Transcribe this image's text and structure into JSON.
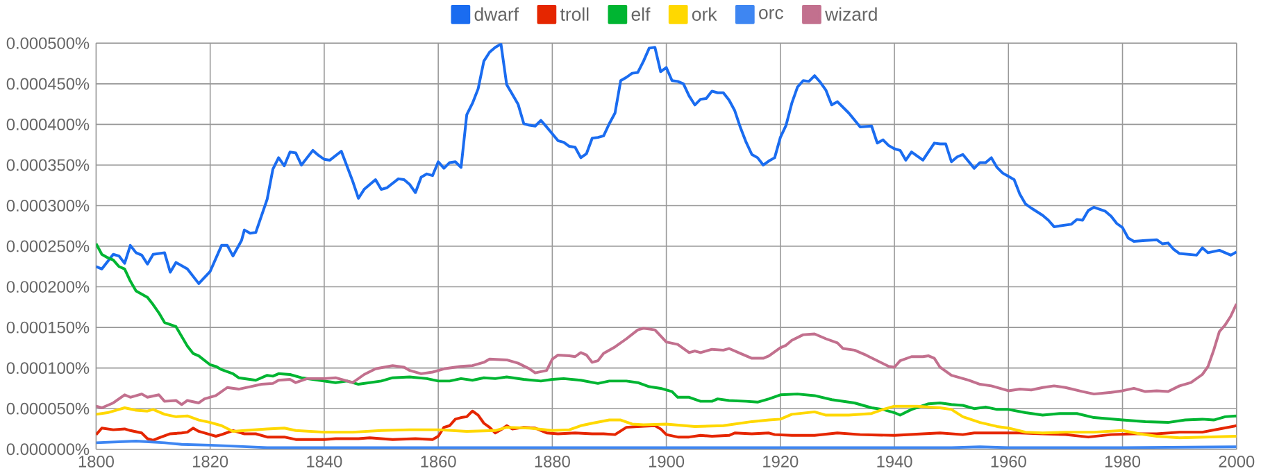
{
  "chart_data": {
    "type": "line",
    "xlim": [
      1800,
      2000
    ],
    "ylim": [
      0,
      0.0005
    ],
    "xticks": [
      1800,
      1820,
      1840,
      1860,
      1880,
      1900,
      1920,
      1940,
      1960,
      1980,
      2000
    ],
    "yticks": [
      {
        "value": 0,
        "label": "0.000000%"
      },
      {
        "value": 5e-05,
        "label": "0.000050%"
      },
      {
        "value": 0.0001,
        "label": "0.000100%"
      },
      {
        "value": 0.00015,
        "label": "0.000150%"
      },
      {
        "value": 0.0002,
        "label": "0.000200%"
      },
      {
        "value": 0.00025,
        "label": "0.000250%"
      },
      {
        "value": 0.0003,
        "label": "0.000300%"
      },
      {
        "value": 0.00035,
        "label": "0.000350%"
      },
      {
        "value": 0.0004,
        "label": "0.000400%"
      },
      {
        "value": 0.00045,
        "label": "0.000450%"
      },
      {
        "value": 0.0005,
        "label": "0.000500%"
      }
    ],
    "grid": true,
    "legend": "top",
    "marker": "none",
    "line_style": "solid",
    "series": [
      {
        "name": "dwarf",
        "color": "#1a6cf0",
        "x": [
          1800,
          1801,
          1803,
          1804,
          1805,
          1806,
          1807,
          1808,
          1809,
          1810,
          1812,
          1813,
          1814,
          1816,
          1818,
          1820,
          1822,
          1823,
          1824,
          1825.5,
          1826,
          1827,
          1828,
          1830,
          1831,
          1832,
          1833,
          1834,
          1835,
          1836,
          1838,
          1839,
          1840,
          1841,
          1843,
          1845,
          1846,
          1847,
          1849,
          1850,
          1851,
          1853,
          1854,
          1855,
          1856,
          1857,
          1858,
          1859,
          1860,
          1861,
          1862,
          1863,
          1864,
          1865,
          1866,
          1867,
          1868,
          1869,
          1870,
          1871,
          1872,
          1873,
          1874,
          1875,
          1876,
          1877,
          1878,
          1879,
          1881,
          1882,
          1883,
          1884,
          1885,
          1886,
          1887,
          1888,
          1889,
          1890,
          1891,
          1892,
          1893,
          1894,
          1895,
          1896,
          1897,
          1898,
          1899,
          1900,
          1901,
          1902,
          1903,
          1904,
          1905,
          1906,
          1907,
          1908,
          1909,
          1910,
          1911,
          1912,
          1913,
          1914,
          1915,
          1916,
          1917,
          1918,
          1919,
          1920,
          1921,
          1922,
          1923,
          1924,
          1925,
          1926,
          1927,
          1928,
          1929,
          1930,
          1932,
          1934,
          1936,
          1937,
          1938,
          1939,
          1940,
          1941,
          1942,
          1943,
          1945,
          1947,
          1948,
          1949,
          1950,
          1951,
          1952,
          1954,
          1955,
          1956,
          1957,
          1958,
          1959,
          1960,
          1961,
          1962,
          1963,
          1964,
          1966,
          1967,
          1968,
          1970,
          1971,
          1972,
          1973,
          1974,
          1975,
          1977,
          1978,
          1979,
          1980,
          1981,
          1982,
          1984,
          1986,
          1987,
          1988,
          1989,
          1990,
          1993,
          1994,
          1995,
          1997,
          1998,
          1999,
          2000
        ],
        "values": [
          0.000225,
          0.000222,
          0.00024,
          0.000238,
          0.000229,
          0.000251,
          0.000242,
          0.000239,
          0.000228,
          0.00024,
          0.000242,
          0.000218,
          0.00023,
          0.000222,
          0.000204,
          0.000219,
          0.000251,
          0.000251,
          0.000238,
          0.000257,
          0.00027,
          0.000266,
          0.000267,
          0.000308,
          0.000345,
          0.000359,
          0.000349,
          0.000366,
          0.000365,
          0.00035,
          0.000368,
          0.000362,
          0.000357,
          0.000356,
          0.000367,
          0.00033,
          0.000309,
          0.00032,
          0.000332,
          0.00032,
          0.000322,
          0.000333,
          0.000332,
          0.000326,
          0.000316,
          0.000335,
          0.000339,
          0.000337,
          0.000354,
          0.000346,
          0.000353,
          0.000354,
          0.000347,
          0.000412,
          0.000426,
          0.000444,
          0.000478,
          0.000489,
          0.000495,
          0.000499,
          0.000449,
          0.000437,
          0.000425,
          0.000401,
          0.000399,
          0.000398,
          0.000405,
          0.000397,
          0.00038,
          0.000378,
          0.000373,
          0.000372,
          0.000359,
          0.000364,
          0.000383,
          0.000384,
          0.000386,
          0.000401,
          0.000414,
          0.000454,
          0.000458,
          0.000463,
          0.000464,
          0.000478,
          0.000494,
          0.000495,
          0.000465,
          0.00047,
          0.000454,
          0.000453,
          0.00045,
          0.000435,
          0.000424,
          0.000431,
          0.000432,
          0.000441,
          0.000439,
          0.000439,
          0.00043,
          0.000417,
          0.000396,
          0.000378,
          0.000363,
          0.000359,
          0.00035,
          0.000355,
          0.000359,
          0.000384,
          0.000399,
          0.000426,
          0.000446,
          0.000454,
          0.000453,
          0.00046,
          0.000452,
          0.000442,
          0.000424,
          0.000428,
          0.000414,
          0.000397,
          0.000398,
          0.000377,
          0.000381,
          0.000374,
          0.00037,
          0.000368,
          0.000356,
          0.000366,
          0.000356,
          0.000377,
          0.000376,
          0.000376,
          0.000354,
          0.00036,
          0.000363,
          0.000346,
          0.000353,
          0.000353,
          0.000359,
          0.000347,
          0.00034,
          0.000336,
          0.000332,
          0.000314,
          0.000302,
          0.000297,
          0.000288,
          0.000282,
          0.000274,
          0.000276,
          0.000277,
          0.000283,
          0.000282,
          0.000294,
          0.000298,
          0.000293,
          0.000287,
          0.000278,
          0.000273,
          0.00026,
          0.000256,
          0.000257,
          0.000258,
          0.000253,
          0.000254,
          0.000246,
          0.000241,
          0.000239,
          0.000248,
          0.000242,
          0.000245,
          0.000242,
          0.000239,
          0.000243
        ]
      },
      {
        "name": "troll",
        "color": "#e52600",
        "x": [
          1800,
          1801,
          1803,
          1805,
          1806,
          1808,
          1809,
          1810,
          1811,
          1813,
          1815,
          1816,
          1817,
          1818,
          1820,
          1821,
          1822,
          1824,
          1826,
          1828,
          1830,
          1833,
          1835,
          1840,
          1842,
          1846,
          1848,
          1852,
          1856,
          1859,
          1860,
          1861,
          1862,
          1863,
          1864,
          1865,
          1866,
          1867,
          1868,
          1869,
          1870,
          1871,
          1872,
          1873,
          1875,
          1877,
          1879,
          1881,
          1884,
          1887,
          1889,
          1891,
          1893,
          1895,
          1898,
          1899,
          1900,
          1902,
          1904,
          1906,
          1908,
          1911,
          1912,
          1915,
          1918,
          1919,
          1922,
          1926,
          1930,
          1934,
          1940,
          1945,
          1948,
          1952,
          1954,
          1958,
          1962,
          1966,
          1970,
          1974,
          1978,
          1982,
          1986,
          1990,
          1994,
          1997,
          2000
        ],
        "values": [
          1.8e-05,
          2.6e-05,
          2.4e-05,
          2.5e-05,
          2.3e-05,
          2e-05,
          1.3e-05,
          1.1e-05,
          1.4e-05,
          1.9e-05,
          2e-05,
          2.1e-05,
          2.6e-05,
          2.2e-05,
          1.8e-05,
          1.6e-05,
          1.8e-05,
          2.3e-05,
          1.9e-05,
          1.9e-05,
          1.5e-05,
          1.5e-05,
          1.2e-05,
          1.2e-05,
          1.3e-05,
          1.3e-05,
          1.4e-05,
          1.2e-05,
          1.3e-05,
          1.2e-05,
          1.6e-05,
          2.7e-05,
          2.9e-05,
          3.7e-05,
          3.9e-05,
          4e-05,
          4.7e-05,
          4.2e-05,
          3.2e-05,
          2.7e-05,
          2e-05,
          2.4e-05,
          2.9e-05,
          2.5e-05,
          2.7e-05,
          2.6e-05,
          2e-05,
          1.9e-05,
          2e-05,
          1.9e-05,
          1.9e-05,
          1.8e-05,
          2.7e-05,
          2.8e-05,
          2.9e-05,
          2.5e-05,
          1.8e-05,
          1.5e-05,
          1.5e-05,
          1.7e-05,
          1.6e-05,
          1.7e-05,
          2e-05,
          1.9e-05,
          2e-05,
          1.8e-05,
          1.7e-05,
          1.7e-05,
          2e-05,
          1.8e-05,
          1.7e-05,
          1.9e-05,
          2e-05,
          1.8e-05,
          2e-05,
          2e-05,
          2e-05,
          1.9e-05,
          1.8e-05,
          1.5e-05,
          1.8e-05,
          1.9e-05,
          1.9e-05,
          2.1e-05,
          2.1e-05,
          2.5e-05,
          2.9e-05
        ]
      },
      {
        "name": "elf",
        "color": "#00b532",
        "x": [
          1800,
          1801,
          1802,
          1803,
          1804,
          1805,
          1806,
          1807,
          1809,
          1810,
          1811,
          1812,
          1814,
          1815,
          1816,
          1817,
          1818,
          1820,
          1821,
          1822,
          1824,
          1825,
          1827,
          1828,
          1830,
          1831,
          1832,
          1834,
          1836,
          1838,
          1840,
          1842,
          1844,
          1846,
          1848,
          1850,
          1852,
          1855,
          1858,
          1860,
          1862,
          1864,
          1866,
          1868,
          1870,
          1872,
          1875,
          1878,
          1880,
          1882,
          1885,
          1888,
          1890,
          1893,
          1895,
          1897,
          1899,
          1901,
          1902,
          1904,
          1906,
          1908,
          1909,
          1911,
          1914,
          1916,
          1918,
          1920,
          1923,
          1926,
          1929,
          1931,
          1933,
          1936,
          1938,
          1940,
          1941,
          1943,
          1946,
          1948,
          1950,
          1952,
          1954,
          1956,
          1958,
          1960,
          1963,
          1966,
          1969,
          1972,
          1975,
          1980,
          1984,
          1988,
          1991,
          1994,
          1996,
          1998,
          2000
        ],
        "values": [
          0.000253,
          0.00024,
          0.000236,
          0.000233,
          0.000225,
          0.000222,
          0.000207,
          0.000195,
          0.000187,
          0.000178,
          0.000168,
          0.000156,
          0.000151,
          0.000139,
          0.000127,
          0.000118,
          0.000115,
          0.000104,
          0.000102,
          9.8e-05,
          9.3e-05,
          8.8e-05,
          8.6e-05,
          8.5e-05,
          9.1e-05,
          9e-05,
          9.3e-05,
          9.2e-05,
          8.8e-05,
          8.6e-05,
          8.4e-05,
          8.2e-05,
          8.4e-05,
          8e-05,
          8.2e-05,
          8.4e-05,
          8.8e-05,
          8.9e-05,
          8.7e-05,
          8.4e-05,
          8.4e-05,
          8.7e-05,
          8.5e-05,
          8.8e-05,
          8.7e-05,
          8.9e-05,
          8.6e-05,
          8.4e-05,
          8.6e-05,
          8.7e-05,
          8.5e-05,
          8.1e-05,
          8.4e-05,
          8.4e-05,
          8.2e-05,
          7.7e-05,
          7.5e-05,
          7.1e-05,
          6.4e-05,
          6.4e-05,
          5.9e-05,
          5.9e-05,
          6.2e-05,
          6e-05,
          5.9e-05,
          5.8e-05,
          6.2e-05,
          6.7e-05,
          6.8e-05,
          6.6e-05,
          6.1e-05,
          5.9e-05,
          5.7e-05,
          5.1e-05,
          4.9e-05,
          4.5e-05,
          4.2e-05,
          4.9e-05,
          5.6e-05,
          5.7e-05,
          5.5e-05,
          5.4e-05,
          5e-05,
          5.2e-05,
          4.9e-05,
          4.9e-05,
          4.5e-05,
          4.2e-05,
          4.4e-05,
          4.4e-05,
          3.9e-05,
          3.6e-05,
          3.4e-05,
          3.3e-05,
          3.6e-05,
          3.7e-05,
          3.6e-05,
          4e-05,
          4.1e-05
        ]
      },
      {
        "name": "ork",
        "color": "#ffd800",
        "x": [
          1800,
          1802,
          1804,
          1805,
          1807,
          1809,
          1810,
          1812,
          1814,
          1816,
          1818,
          1820,
          1822,
          1824,
          1826,
          1830,
          1833,
          1835,
          1840,
          1845,
          1850,
          1855,
          1860,
          1865,
          1870,
          1872,
          1876,
          1880,
          1883,
          1885,
          1887,
          1890,
          1892,
          1894,
          1896,
          1900,
          1905,
          1910,
          1915,
          1918,
          1920,
          1922,
          1926,
          1928,
          1932,
          1936,
          1938,
          1940,
          1944,
          1948,
          1950,
          1952,
          1955,
          1958,
          1960,
          1963,
          1966,
          1970,
          1975,
          1980,
          1983,
          1986,
          1990,
          1995,
          2000
        ],
        "values": [
          4.3e-05,
          4.5e-05,
          4.9e-05,
          5.1e-05,
          4.8e-05,
          4.7e-05,
          4.9e-05,
          4.3e-05,
          4e-05,
          4.1e-05,
          3.6e-05,
          3.3e-05,
          2.9e-05,
          2.2e-05,
          2.3e-05,
          2.5e-05,
          2.6e-05,
          2.3e-05,
          2.1e-05,
          2.1e-05,
          2.3e-05,
          2.4e-05,
          2.4e-05,
          2.2e-05,
          2.3e-05,
          2.7e-05,
          2.6e-05,
          2.3e-05,
          2.4e-05,
          2.9e-05,
          3.2e-05,
          3.6e-05,
          3.6e-05,
          3.1e-05,
          3e-05,
          3.1e-05,
          2.8e-05,
          2.9e-05,
          3.4e-05,
          3.6e-05,
          3.7e-05,
          4.3e-05,
          4.6e-05,
          4.2e-05,
          4.2e-05,
          4.4e-05,
          4.9e-05,
          5.3e-05,
          5.3e-05,
          5.1e-05,
          4.9e-05,
          4e-05,
          3.3e-05,
          2.8e-05,
          2.6e-05,
          2.1e-05,
          2e-05,
          2.1e-05,
          2.1e-05,
          2.3e-05,
          1.9e-05,
          1.6e-05,
          1.4e-05,
          1.5e-05,
          1.6e-05
        ]
      },
      {
        "name": "orc",
        "color": "#3e86f2",
        "x": [
          1800,
          1807,
          1812,
          1815,
          1820,
          1830,
          1840,
          1860,
          1880,
          1900,
          1920,
          1940,
          1950,
          1955,
          1960,
          1980,
          2000
        ],
        "values": [
          8e-06,
          1e-05,
          8e-06,
          6e-06,
          5e-06,
          2e-06,
          2e-06,
          2e-06,
          2e-06,
          2e-06,
          2e-06,
          2e-06,
          2e-06,
          3e-06,
          2e-06,
          2e-06,
          3e-06
        ]
      },
      {
        "name": "wizard",
        "color": "#c2708e",
        "x": [
          1800,
          1801,
          1803,
          1805,
          1806,
          1808,
          1809,
          1811,
          1812,
          1814,
          1815,
          1816,
          1818,
          1819,
          1821,
          1822,
          1823,
          1825,
          1827,
          1829,
          1831,
          1832,
          1834,
          1835,
          1837,
          1840,
          1842,
          1845,
          1847,
          1849,
          1852,
          1854,
          1855,
          1857,
          1859,
          1861,
          1864,
          1866,
          1868,
          1869,
          1872,
          1874,
          1876,
          1877,
          1879,
          1880,
          1881,
          1883,
          1884,
          1885,
          1886,
          1887,
          1888,
          1889,
          1891,
          1893,
          1895,
          1896,
          1898,
          1900,
          1902,
          1904,
          1905,
          1906,
          1908,
          1910,
          1911,
          1913,
          1915,
          1917,
          1918,
          1920,
          1921,
          1922,
          1924,
          1926,
          1928,
          1930,
          1931,
          1933,
          1935,
          1937,
          1939,
          1940,
          1941,
          1943,
          1945,
          1946,
          1947,
          1948,
          1950,
          1953,
          1955,
          1957,
          1960,
          1962,
          1964,
          1966,
          1968,
          1970,
          1973,
          1975,
          1978,
          1980,
          1982,
          1984,
          1986,
          1988,
          1990,
          1992,
          1994,
          1995,
          1996,
          1997,
          1998,
          1999,
          2000
        ],
        "values": [
          5.3e-05,
          5.1e-05,
          5.7e-05,
          6.7e-05,
          6.4e-05,
          6.8e-05,
          6.4e-05,
          6.7e-05,
          5.9e-05,
          6e-05,
          5.5e-05,
          6e-05,
          5.7e-05,
          6.2e-05,
          6.6e-05,
          7.1e-05,
          7.6e-05,
          7.4e-05,
          7.7e-05,
          8e-05,
          8.1e-05,
          8.5e-05,
          8.6e-05,
          8.2e-05,
          8.7e-05,
          8.7e-05,
          8.8e-05,
          8.2e-05,
          9.2e-05,
          9.9e-05,
          0.000103,
          0.000101,
          9.7e-05,
          9.3e-05,
          9.5e-05,
          9.9e-05,
          0.000102,
          0.000103,
          0.000107,
          0.000111,
          0.00011,
          0.000106,
          9.9e-05,
          9.4e-05,
          9.7e-05,
          0.000111,
          0.000116,
          0.000115,
          0.000114,
          0.000119,
          0.000116,
          0.000107,
          0.000109,
          0.000118,
          0.000126,
          0.000136,
          0.000147,
          0.000149,
          0.000147,
          0.000132,
          0.000129,
          0.000119,
          0.000121,
          0.000119,
          0.000123,
          0.000122,
          0.000124,
          0.000118,
          0.000112,
          0.000112,
          0.000115,
          0.000125,
          0.000128,
          0.000134,
          0.000141,
          0.000142,
          0.000136,
          0.000131,
          0.000124,
          0.000122,
          0.000116,
          0.000109,
          0.000102,
          0.000101,
          0.000109,
          0.000114,
          0.000114,
          0.000115,
          0.000112,
          0.000101,
          9.1e-05,
          8.5e-05,
          8e-05,
          7.8e-05,
          7.2e-05,
          7.4e-05,
          7.3e-05,
          7.6e-05,
          7.8e-05,
          7.6e-05,
          7.1e-05,
          6.8e-05,
          7e-05,
          7.2e-05,
          7.5e-05,
          7.1e-05,
          7.2e-05,
          7.1e-05,
          7.8e-05,
          8.2e-05,
          9.2e-05,
          0.000102,
          0.000122,
          0.000145,
          0.000153,
          0.000164,
          0.000179
        ]
      }
    ]
  }
}
